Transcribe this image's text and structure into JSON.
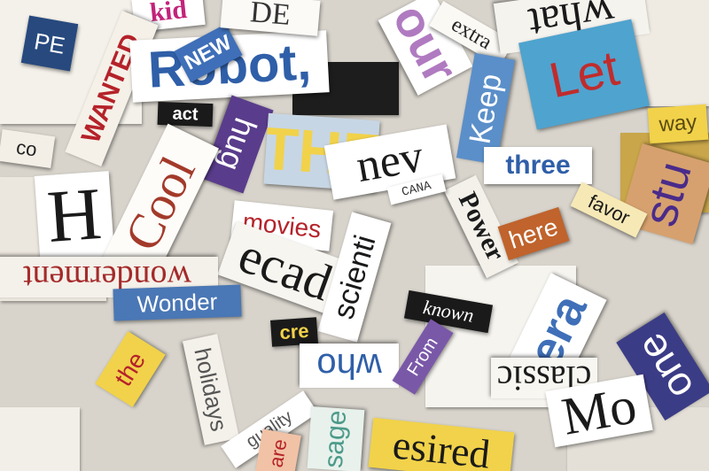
{
  "image": {
    "kind": "photograph",
    "subject": "collage of magazine letter cutouts"
  },
  "clippings": {
    "kid": "kid",
    "wanted": "WANTED",
    "pe": "PE",
    "new": "NEW",
    "robot": "Robot,",
    "our": "our",
    "extra": "extra",
    "what": "what",
    "keep": "Keep",
    "let": "Let",
    "act": "act",
    "hug": "hug",
    "the_big": "THE",
    "never": "nev",
    "three": "three",
    "way": "way",
    "stud": "stu",
    "cool": "Cool",
    "h_letter": "H",
    "power": "Power",
    "here": "here",
    "favor": "favor",
    "movies": "movies",
    "decade": "ecad",
    "scientific": "scienti",
    "wonderment": "wonderment",
    "wonder": "Wonder",
    "known": "known",
    "era": "era",
    "who": "who",
    "from": "From",
    "the_small": "the",
    "holidays": "holidays",
    "cre": "cre",
    "classic": "classic",
    "one": "one",
    "mo": "Mo",
    "message": "sage",
    "guality": "guality",
    "are": "are",
    "desired": "esired",
    "de": "DE",
    "canada": "CANA",
    "co": "co"
  },
  "colors": {
    "red": "#b5222a",
    "blue": "#2f5fa8",
    "purple": "#5a3c8c",
    "yellow": "#f1d24a",
    "black": "#1a1a1a"
  }
}
